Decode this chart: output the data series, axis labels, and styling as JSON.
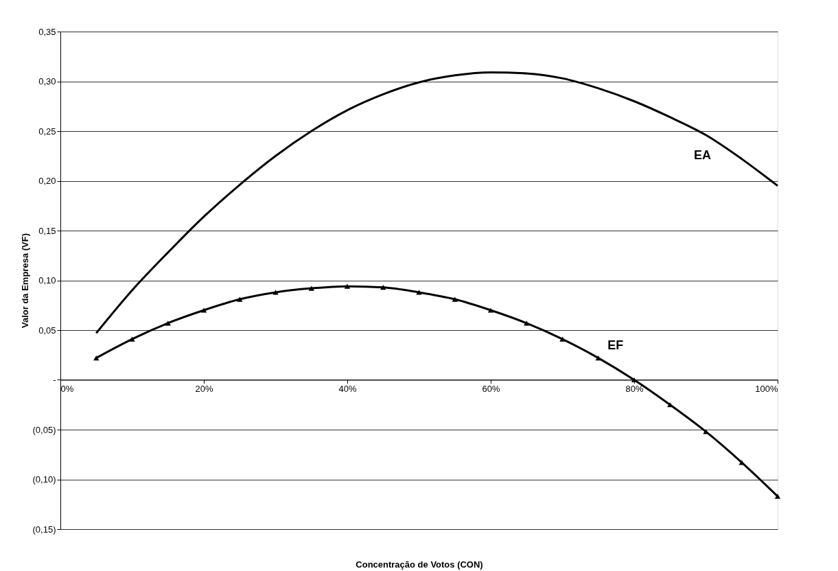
{
  "chart_data": {
    "type": "line",
    "xlabel": "Concentração de Votos (CON)",
    "ylabel": "Valor da Empresa (VF)",
    "x": [
      5,
      10,
      15,
      20,
      25,
      30,
      35,
      40,
      45,
      50,
      55,
      60,
      65,
      70,
      75,
      80,
      85,
      90,
      95,
      100
    ],
    "series": [
      {
        "name": "EA",
        "color": "#000000",
        "marker": "none",
        "values": [
          0.047,
          0.09,
          0.128,
          0.164,
          0.196,
          0.225,
          0.25,
          0.271,
          0.287,
          0.299,
          0.306,
          0.309,
          0.308,
          0.303,
          0.293,
          0.28,
          0.264,
          0.246,
          0.222,
          0.195
        ]
      },
      {
        "name": "EF",
        "color": "#000000",
        "marker": "triangle",
        "values": [
          0.022,
          0.041,
          0.057,
          0.07,
          0.081,
          0.088,
          0.092,
          0.094,
          0.093,
          0.088,
          0.081,
          0.07,
          0.057,
          0.041,
          0.022,
          0.0,
          -0.025,
          -0.052,
          -0.083,
          -0.117
        ]
      }
    ],
    "xlim": [
      0,
      100
    ],
    "xticks": [
      {
        "value": 0,
        "label": "0%"
      },
      {
        "value": 20,
        "label": "20%"
      },
      {
        "value": 40,
        "label": "40%"
      },
      {
        "value": 60,
        "label": "60%"
      },
      {
        "value": 80,
        "label": "80%"
      },
      {
        "value": 100,
        "label": "100%"
      }
    ],
    "ylim": [
      -0.15,
      0.35
    ],
    "yticks": [
      {
        "value": -0.15,
        "label": "(0,15)"
      },
      {
        "value": -0.1,
        "label": "(0,10)"
      },
      {
        "value": -0.05,
        "label": "(0,05)"
      },
      {
        "value": 0,
        "label": "-"
      },
      {
        "value": 0.05,
        "label": "0,05"
      },
      {
        "value": 0.1,
        "label": "0,10"
      },
      {
        "value": 0.15,
        "label": "0,15"
      },
      {
        "value": 0.2,
        "label": "0,20"
      },
      {
        "value": 0.25,
        "label": "0,25"
      },
      {
        "value": 0.3,
        "label": "0,30"
      },
      {
        "value": 0.35,
        "label": "0,35"
      }
    ],
    "grid": "y",
    "line_style": "solid"
  }
}
